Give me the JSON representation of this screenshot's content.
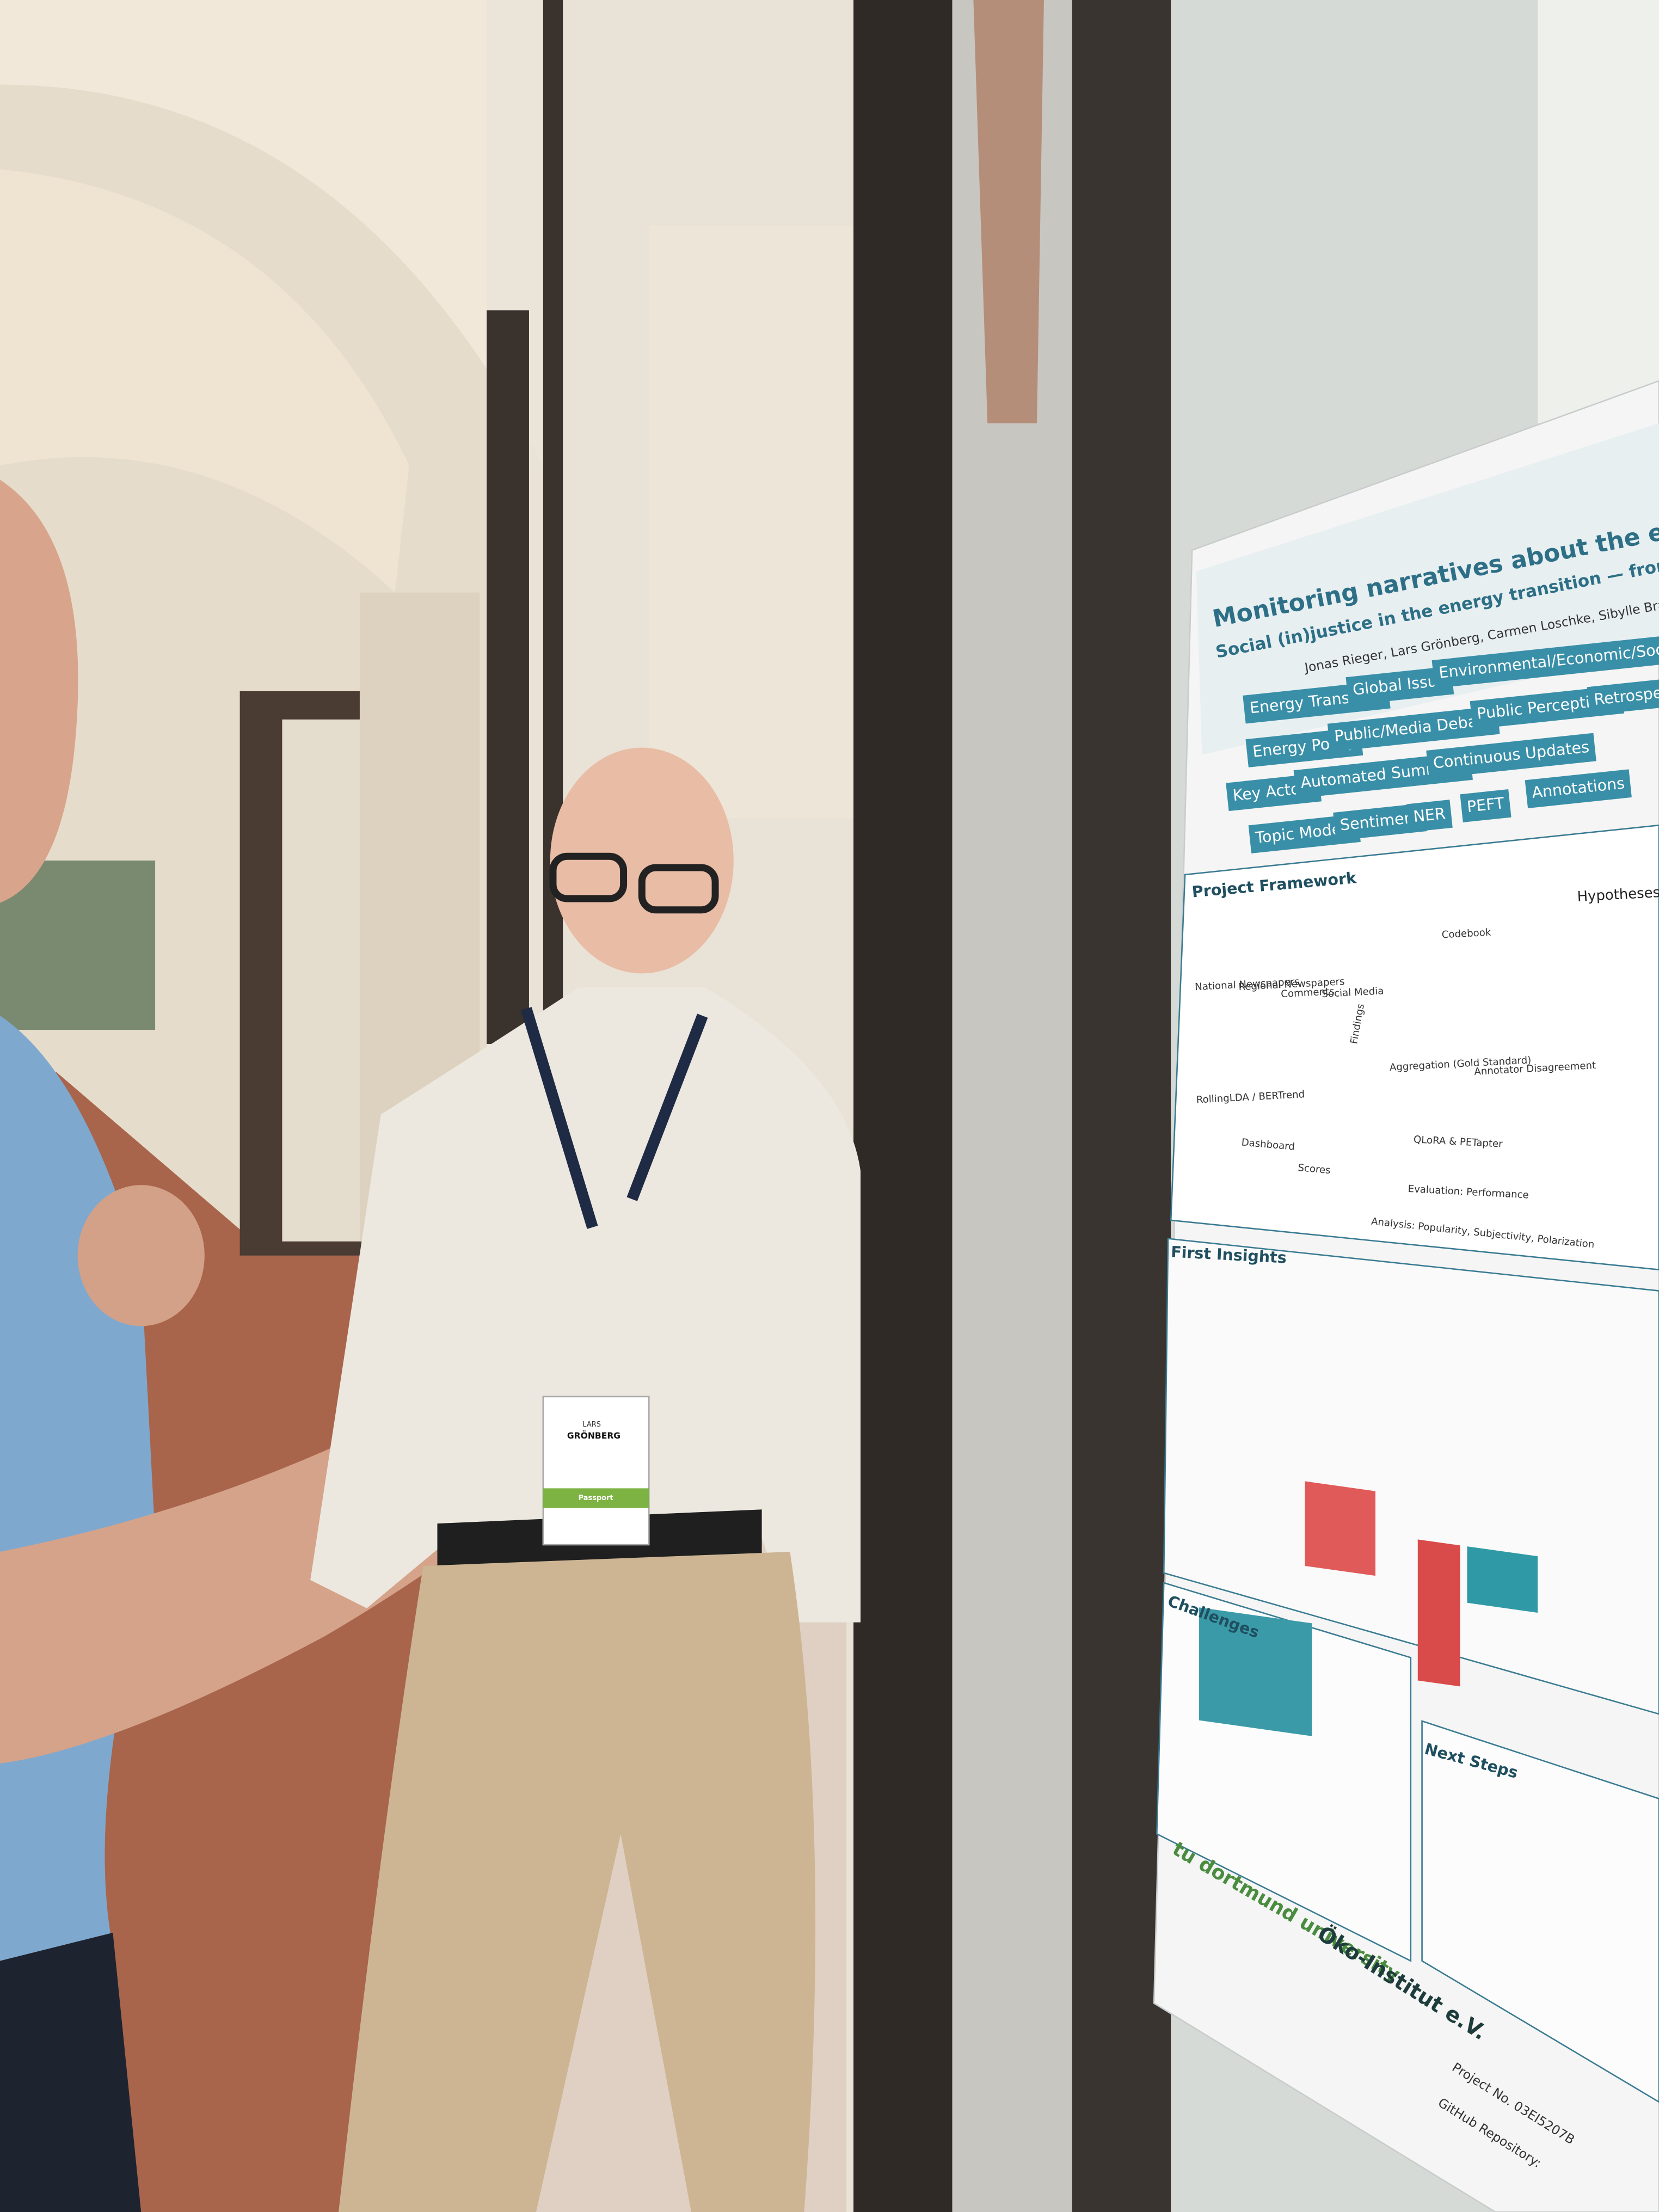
{
  "poster": {
    "title": "Monitoring narratives about the energy transitio",
    "subtitle": "Social (in)justice in the energy transition — from the digital debate",
    "authors": "Jonas Rieger, Lars Grönberg, Carmen Loschke, Sibylle Braungar",
    "keywords": [
      "Energy Transition",
      "Global Issue",
      "Environmental/Economic/Socia",
      "Energy Policy",
      "Public/Media Debate",
      "Public Perceptions",
      "Retrospe",
      "Key Actors",
      "Automated Summary",
      "Continuous Updates",
      "Topic Models",
      "Sentiment",
      "NER",
      "PEFT",
      "Annotations"
    ],
    "sections": {
      "framework": "Project Framework",
      "insights": "First Insights",
      "challenges": "Challenges",
      "next_steps": "Next Steps"
    },
    "framework_labels": [
      "National Newspapers",
      "Regional Newspapers",
      "Comments",
      "Social Media",
      "Codebook",
      "RollingLDA / BERTrend",
      "Dashboard",
      "Aggregation (Gold Standard)",
      "Annotator Disagreement",
      "QLoRA & PETapter",
      "Evaluation: Performance",
      "Analysis: Popularity, Subjectivity, Polarization",
      "Findings",
      "Scores"
    ],
    "hypotheses": "Hypotheses tha",
    "logos": [
      "tu dortmund university",
      "Öko-Institut e.V."
    ],
    "footer": [
      "Project No. 03EI5207B",
      "GitHub Repository:"
    ]
  },
  "badge": {
    "first_name": "LARS",
    "last_name": "GRÖNBERG",
    "label": "Passport"
  }
}
